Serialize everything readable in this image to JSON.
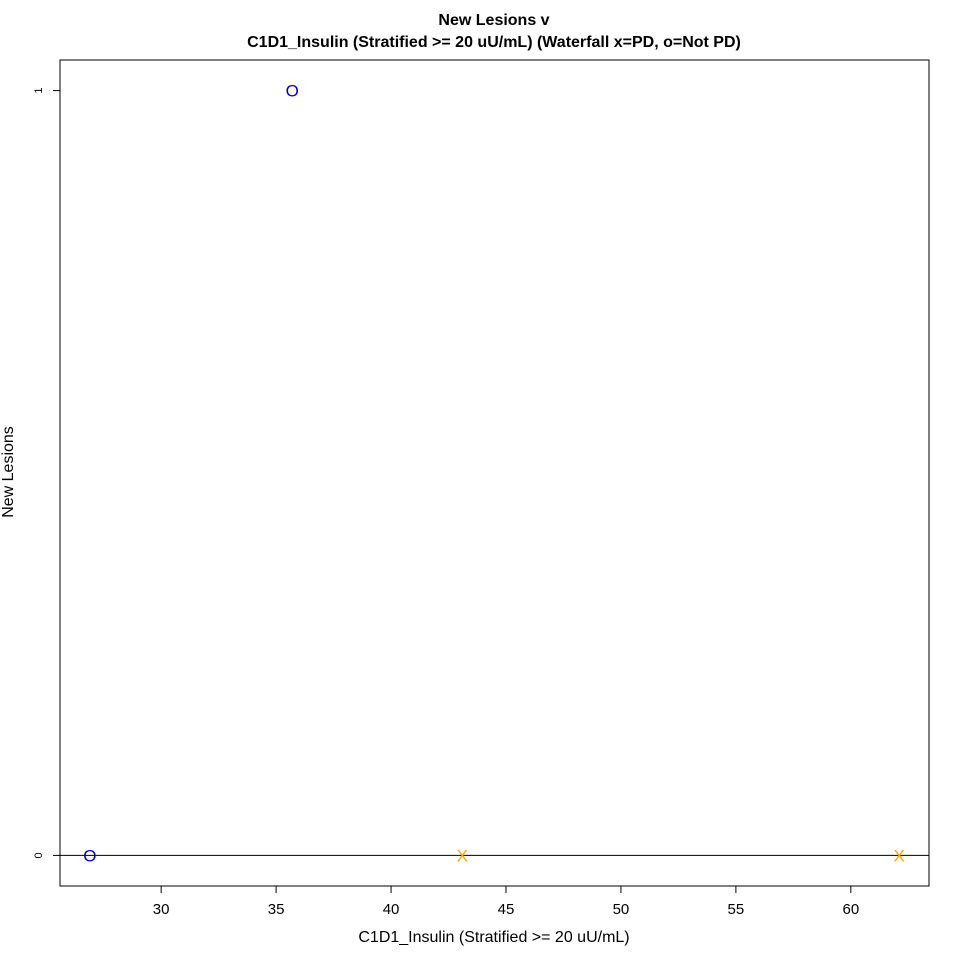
{
  "chart_data": {
    "type": "scatter",
    "title": "New Lesions v",
    "subtitle": "C1D1_Insulin (Stratified >= 20 uU/mL) (Waterfall x=PD, o=Not PD)",
    "xlabel": "C1D1_Insulin (Stratified >= 20 uU/mL)",
    "ylabel": "New Lesions",
    "xlim": [
      25.6,
      63.4
    ],
    "ylim": [
      -0.04,
      1.04
    ],
    "xticks": [
      30,
      35,
      40,
      45,
      50,
      55,
      60
    ],
    "yticks": [
      0,
      1
    ],
    "grid": false,
    "hline": 0,
    "series": [
      {
        "marker": "o",
        "color": "#0000cd",
        "points": [
          {
            "x": 35.7,
            "y": 1
          },
          {
            "x": 26.9,
            "y": 0
          }
        ]
      },
      {
        "marker": "x",
        "color": "#ffa500",
        "points": [
          {
            "x": 43.1,
            "y": 0
          },
          {
            "x": 62.1,
            "y": 0
          }
        ]
      }
    ]
  }
}
